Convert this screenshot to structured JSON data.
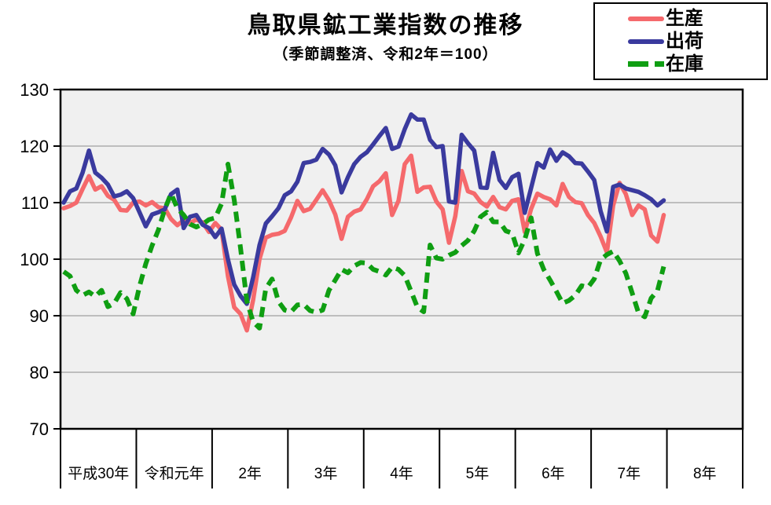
{
  "page": {
    "background": "#ffffff"
  },
  "chart": {
    "plot": {
      "bg": "#f0f0f0",
      "grid_color": "#8c8c8c",
      "border_color": "#000000",
      "tick_label_color": "#000000"
    },
    "chart_data": {
      "type": "line",
      "title": "鳥取県鉱工業指数の推移",
      "subtitle": "（季節調整済、令和2年＝100）",
      "ylim": [
        70,
        130
      ],
      "y_ticks": [
        130,
        120,
        110,
        100,
        90,
        80,
        70
      ],
      "x_year_labels": [
        "平成30年",
        "令和元年",
        "2年",
        "3年",
        "4年",
        "5年",
        "6年",
        "7年",
        "8年"
      ],
      "points_per_year": 12,
      "grid": true,
      "legend_position": "top-right",
      "series": [
        {
          "name": "生産",
          "color": "#f5696c",
          "line_style": "solid",
          "values": [
            109.0,
            109.4,
            110.0,
            112.4,
            114.7,
            112.3,
            112.9,
            111.2,
            110.5,
            108.7,
            108.6,
            110.0,
            110.2,
            109.5,
            110.1,
            109.2,
            109.0,
            107.1,
            106.0,
            106.9,
            106.4,
            107.0,
            106.5,
            104.8,
            106.4,
            105.2,
            97.0,
            91.5,
            90.3,
            87.4,
            92.8,
            100.0,
            103.8,
            104.3,
            104.5,
            105.0,
            107.4,
            110.3,
            108.5,
            108.9,
            110.5,
            112.2,
            110.4,
            107.9,
            103.6,
            107.5,
            108.4,
            108.8,
            110.6,
            112.9,
            113.8,
            115.2,
            107.8,
            110.3,
            116.8,
            118.3,
            111.9,
            112.7,
            112.8,
            110.2,
            108.8,
            102.9,
            107.6,
            115.6,
            112.0,
            111.6,
            110.1,
            109.3,
            111.0,
            109.2,
            108.8,
            110.3,
            110.6,
            104.8,
            108.9,
            111.6,
            111.0,
            110.6,
            109.5,
            113.3,
            111.0,
            110.1,
            109.9,
            107.8,
            106.4,
            104.0,
            101.2,
            109.5,
            113.5,
            111.5,
            107.8,
            109.5,
            108.8,
            104.2,
            103.1,
            107.8
          ]
        },
        {
          "name": "出荷",
          "color": "#3a3a9e",
          "line_style": "solid",
          "values": [
            110.0,
            112.0,
            112.5,
            115.3,
            119.2,
            115.3,
            114.4,
            113.2,
            111.1,
            111.4,
            112.0,
            110.8,
            108.3,
            105.8,
            107.9,
            108.3,
            108.8,
            111.5,
            112.3,
            105.5,
            107.5,
            107.8,
            106.1,
            105.5,
            103.9,
            105.4,
            100.0,
            95.5,
            93.5,
            92.1,
            96.8,
            102.5,
            106.3,
            107.6,
            109.0,
            111.3,
            112.0,
            113.7,
            117.0,
            117.2,
            117.6,
            119.5,
            118.5,
            116.6,
            111.8,
            114.5,
            116.8,
            118.1,
            118.9,
            120.3,
            121.8,
            123.2,
            119.5,
            119.9,
            123.0,
            125.6,
            124.7,
            124.7,
            121.1,
            119.8,
            120.0,
            110.2,
            110.0,
            122.0,
            120.5,
            119.2,
            112.7,
            112.6,
            118.8,
            114.0,
            112.6,
            114.5,
            115.1,
            108.2,
            112.6,
            117.0,
            116.2,
            119.4,
            117.4,
            118.9,
            118.2,
            117.0,
            116.9,
            115.5,
            114.0,
            108.5,
            104.9,
            112.8,
            113.2,
            112.5,
            112.2,
            111.9,
            111.3,
            110.6,
            109.5,
            110.4
          ]
        },
        {
          "name": "在庫",
          "color": "#0f9e12",
          "line_style": "dashed",
          "values": [
            97.8,
            97.0,
            94.5,
            93.6,
            94.2,
            93.4,
            94.5,
            91.6,
            92.2,
            94.1,
            93.0,
            90.3,
            95.2,
            99.2,
            102.4,
            105.2,
            108.8,
            111.6,
            109.0,
            107.8,
            106.2,
            105.7,
            106.2,
            107.0,
            107.3,
            109.8,
            116.8,
            110.5,
            101.9,
            92.6,
            88.9,
            87.8,
            94.8,
            96.5,
            92.5,
            91.0,
            90.7,
            91.9,
            92.0,
            90.9,
            90.6,
            91.0,
            94.5,
            96.3,
            98.2,
            97.6,
            98.8,
            99.4,
            99.3,
            98.2,
            97.8,
            97.2,
            98.6,
            98.2,
            97.1,
            94.3,
            91.5,
            90.7,
            102.5,
            100.2,
            100.0,
            100.7,
            101.2,
            102.4,
            103.3,
            105.0,
            107.5,
            108.3,
            106.6,
            106.6,
            105.0,
            104.6,
            101.1,
            103.5,
            107.3,
            101.0,
            98.2,
            96.3,
            94.3,
            92.2,
            92.7,
            93.6,
            95.3,
            95.0,
            96.5,
            99.9,
            100.8,
            101.4,
            99.7,
            97.5,
            94.0,
            90.5,
            89.8,
            93.1,
            94.4,
            98.7
          ]
        }
      ]
    }
  }
}
